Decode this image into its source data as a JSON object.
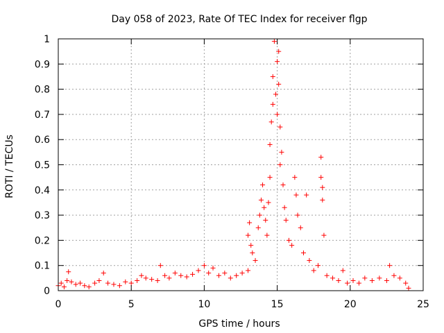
{
  "chart_data": {
    "type": "scatter",
    "title": "Day 058 of 2023, Rate Of TEC Index for receiver flgp",
    "xlabel": "GPS time / hours",
    "ylabel": "ROTI / TECUs",
    "xlim": [
      0,
      25
    ],
    "ylim": [
      0,
      1
    ],
    "xticks": [
      0,
      5,
      10,
      15,
      20,
      25
    ],
    "yticks": [
      0,
      0.1,
      0.2,
      0.3,
      0.4,
      0.5,
      0.6,
      0.7,
      0.8,
      0.9,
      1
    ],
    "xtick_labels": [
      "0",
      "5",
      "10",
      "15",
      "20",
      "25"
    ],
    "ytick_labels": [
      "0",
      "0.1",
      "0.2",
      "0.3",
      "0.4",
      "0.5",
      "0.6",
      "0.7",
      "0.8",
      "0.9",
      "1"
    ],
    "grid": true,
    "marker": "plus",
    "color": "#ff0000",
    "series": [
      {
        "name": "flgp",
        "points": [
          [
            0.0,
            0.02
          ],
          [
            0.2,
            0.03
          ],
          [
            0.4,
            0.015
          ],
          [
            0.6,
            0.04
          ],
          [
            0.7,
            0.075
          ],
          [
            0.9,
            0.035
          ],
          [
            1.2,
            0.025
          ],
          [
            1.5,
            0.03
          ],
          [
            1.8,
            0.02
          ],
          [
            2.1,
            0.015
          ],
          [
            2.5,
            0.03
          ],
          [
            2.8,
            0.04
          ],
          [
            3.1,
            0.07
          ],
          [
            3.4,
            0.03
          ],
          [
            3.8,
            0.025
          ],
          [
            4.2,
            0.02
          ],
          [
            4.6,
            0.035
          ],
          [
            5.0,
            0.03
          ],
          [
            5.4,
            0.04
          ],
          [
            5.7,
            0.06
          ],
          [
            6.0,
            0.05
          ],
          [
            6.4,
            0.045
          ],
          [
            6.8,
            0.04
          ],
          [
            7.0,
            0.1
          ],
          [
            7.3,
            0.06
          ],
          [
            7.6,
            0.05
          ],
          [
            8.0,
            0.07
          ],
          [
            8.4,
            0.06
          ],
          [
            8.8,
            0.055
          ],
          [
            9.2,
            0.065
          ],
          [
            9.6,
            0.08
          ],
          [
            10.0,
            0.1
          ],
          [
            10.3,
            0.07
          ],
          [
            10.6,
            0.09
          ],
          [
            11.0,
            0.06
          ],
          [
            11.4,
            0.07
          ],
          [
            11.8,
            0.05
          ],
          [
            12.2,
            0.06
          ],
          [
            12.6,
            0.07
          ],
          [
            13.0,
            0.08
          ],
          [
            13.0,
            0.22
          ],
          [
            13.1,
            0.27
          ],
          [
            13.2,
            0.18
          ],
          [
            13.3,
            0.15
          ],
          [
            13.5,
            0.12
          ],
          [
            13.7,
            0.25
          ],
          [
            13.8,
            0.3
          ],
          [
            13.9,
            0.36
          ],
          [
            14.0,
            0.42
          ],
          [
            14.1,
            0.33
          ],
          [
            14.2,
            0.28
          ],
          [
            14.3,
            0.22
          ],
          [
            14.4,
            0.35
          ],
          [
            14.5,
            0.45
          ],
          [
            14.5,
            0.58
          ],
          [
            14.6,
            0.67
          ],
          [
            14.7,
            0.74
          ],
          [
            14.7,
            0.85
          ],
          [
            14.8,
            0.99
          ],
          [
            14.9,
            0.78
          ],
          [
            15.0,
            0.91
          ],
          [
            15.0,
            0.7
          ],
          [
            15.1,
            0.82
          ],
          [
            15.1,
            0.95
          ],
          [
            15.2,
            0.65
          ],
          [
            15.2,
            0.5
          ],
          [
            15.3,
            0.55
          ],
          [
            15.4,
            0.42
          ],
          [
            15.5,
            0.33
          ],
          [
            15.6,
            0.28
          ],
          [
            15.8,
            0.2
          ],
          [
            16.0,
            0.18
          ],
          [
            16.2,
            0.45
          ],
          [
            16.3,
            0.38
          ],
          [
            16.4,
            0.3
          ],
          [
            16.6,
            0.25
          ],
          [
            16.8,
            0.15
          ],
          [
            17.0,
            0.38
          ],
          [
            17.2,
            0.12
          ],
          [
            17.5,
            0.08
          ],
          [
            17.8,
            0.1
          ],
          [
            18.0,
            0.53
          ],
          [
            18.0,
            0.45
          ],
          [
            18.1,
            0.41
          ],
          [
            18.1,
            0.36
          ],
          [
            18.2,
            0.22
          ],
          [
            18.4,
            0.06
          ],
          [
            18.8,
            0.05
          ],
          [
            19.2,
            0.04
          ],
          [
            19.5,
            0.08
          ],
          [
            19.8,
            0.03
          ],
          [
            20.2,
            0.04
          ],
          [
            20.6,
            0.03
          ],
          [
            21.0,
            0.05
          ],
          [
            21.5,
            0.04
          ],
          [
            22.0,
            0.05
          ],
          [
            22.5,
            0.04
          ],
          [
            22.7,
            0.1
          ],
          [
            23.0,
            0.06
          ],
          [
            23.4,
            0.05
          ],
          [
            23.8,
            0.03
          ],
          [
            24.0,
            0.01
          ]
        ]
      }
    ]
  }
}
